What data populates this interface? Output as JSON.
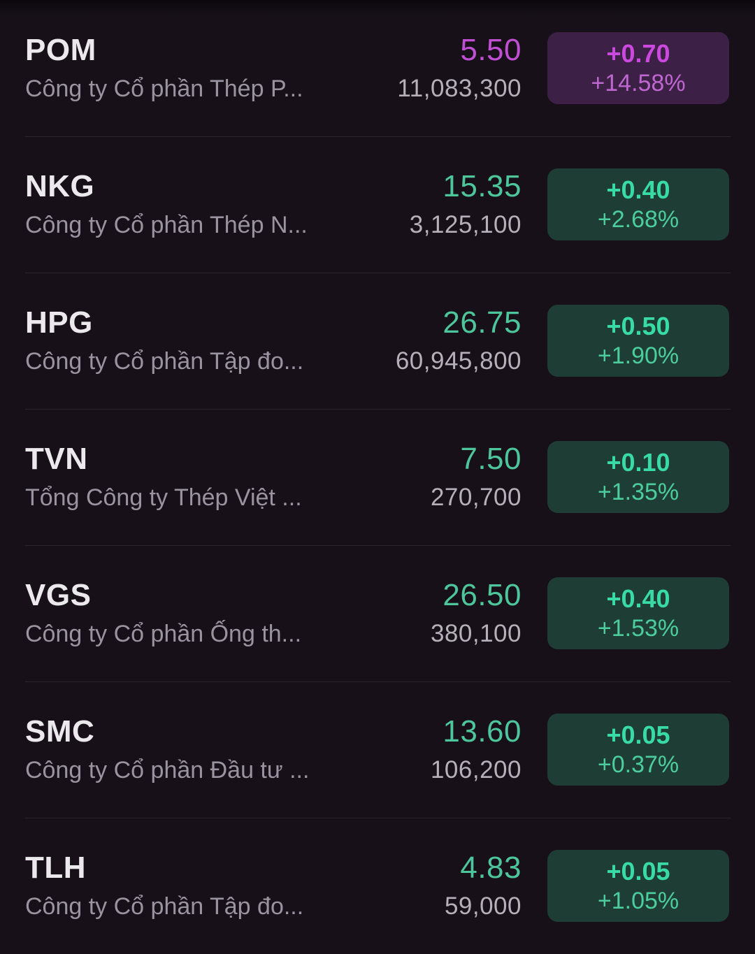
{
  "colors": {
    "background": "#171019",
    "divider": "#2A2430",
    "symbol_text": "#ECE9ED",
    "company_text": "#9A93A0",
    "volume_text": "#B6B0BA",
    "up": "#4CC69A",
    "up_badge_bg": "#1E3D34",
    "up_badge_change": "#38DBA4",
    "up_badge_pct": "#4CCD9E",
    "ceiling": "#C04FD4",
    "ceiling_badge_bg": "#3D2045",
    "ceiling_badge_change": "#CC49E0",
    "ceiling_badge_pct": "#BF67D1"
  },
  "stocks": [
    {
      "symbol": "POM",
      "name": "Công ty Cổ phần Thép P...",
      "price": "5.50",
      "volume": "11,083,300",
      "change": "+0.70",
      "change_pct": "+14.58%",
      "state": "ceiling"
    },
    {
      "symbol": "NKG",
      "name": "Công ty Cổ phần Thép N...",
      "price": "15.35",
      "volume": "3,125,100",
      "change": "+0.40",
      "change_pct": "+2.68%",
      "state": "up"
    },
    {
      "symbol": "HPG",
      "name": "Công ty Cổ phần Tập đo...",
      "price": "26.75",
      "volume": "60,945,800",
      "change": "+0.50",
      "change_pct": "+1.90%",
      "state": "up"
    },
    {
      "symbol": "TVN",
      "name": "Tổng Công ty Thép Việt ...",
      "price": "7.50",
      "volume": "270,700",
      "change": "+0.10",
      "change_pct": "+1.35%",
      "state": "up"
    },
    {
      "symbol": "VGS",
      "name": "Công ty Cổ phần Ống th...",
      "price": "26.50",
      "volume": "380,100",
      "change": "+0.40",
      "change_pct": "+1.53%",
      "state": "up"
    },
    {
      "symbol": "SMC",
      "name": "Công ty Cổ phần Đầu tư ...",
      "price": "13.60",
      "volume": "106,200",
      "change": "+0.05",
      "change_pct": "+0.37%",
      "state": "up"
    },
    {
      "symbol": "TLH",
      "name": "Công ty Cổ phần Tập đo...",
      "price": "4.83",
      "volume": "59,000",
      "change": "+0.05",
      "change_pct": "+1.05%",
      "state": "up"
    }
  ]
}
